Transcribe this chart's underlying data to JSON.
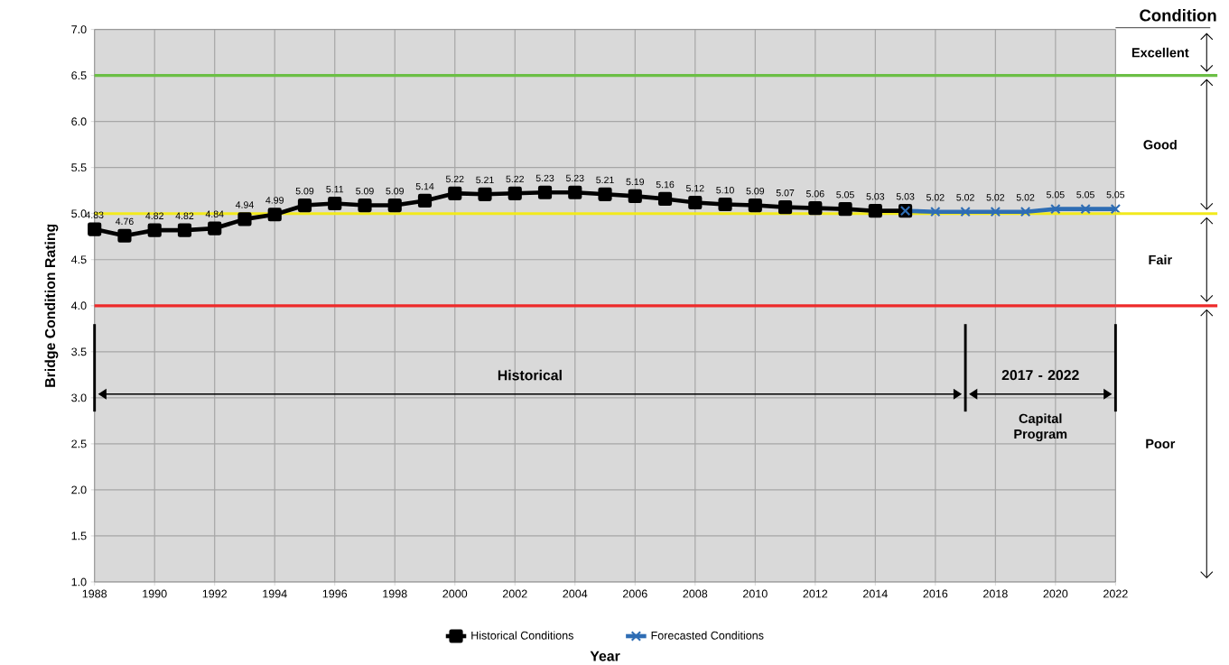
{
  "chart_data": {
    "type": "line",
    "xlabel": "Year",
    "ylabel": "Bridge Condition Rating",
    "xlim": [
      1988,
      2022
    ],
    "xticks": [
      1988,
      1990,
      1992,
      1994,
      1996,
      1998,
      2000,
      2002,
      2004,
      2006,
      2008,
      2010,
      2012,
      2014,
      2016,
      2018,
      2020,
      2022
    ],
    "ylim": [
      1.0,
      7.0
    ],
    "yticks": [
      {
        "value": 1.0,
        "label": "1.0"
      },
      {
        "value": 1.5,
        "label": "1.5"
      },
      {
        "value": 2.0,
        "label": "2.0"
      },
      {
        "value": 2.5,
        "label": "2.5"
      },
      {
        "value": 3.0,
        "label": "3.0"
      },
      {
        "value": 3.5,
        "label": "3.5"
      },
      {
        "value": 4.0,
        "label": "4.0"
      },
      {
        "value": 4.5,
        "label": "4.5"
      },
      {
        "value": 5.0,
        "label": "5.0"
      },
      {
        "value": 5.5,
        "label": "5.5"
      },
      {
        "value": 6.0,
        "label": "6.0"
      },
      {
        "value": 6.5,
        "label": "6.5"
      },
      {
        "value": 7.0,
        "label": "7.0"
      }
    ],
    "grid": true,
    "legend": "bottom",
    "series": [
      {
        "name": "Historical Conditions",
        "color": "#000000",
        "marker": "square",
        "x": [
          1988,
          1989,
          1990,
          1991,
          1992,
          1993,
          1994,
          1995,
          1996,
          1997,
          1998,
          1999,
          2000,
          2001,
          2002,
          2003,
          2004,
          2005,
          2006,
          2007,
          2008,
          2009,
          2010,
          2011,
          2012,
          2013,
          2014,
          2015
        ],
        "values": [
          4.83,
          4.76,
          4.82,
          4.82,
          4.84,
          4.94,
          4.99,
          5.09,
          5.11,
          5.09,
          5.09,
          5.14,
          5.22,
          5.21,
          5.22,
          5.23,
          5.23,
          5.21,
          5.19,
          5.16,
          5.12,
          5.1,
          5.09,
          5.07,
          5.06,
          5.05,
          5.03,
          5.03
        ],
        "value_labels": [
          "4.83",
          "4.76",
          "4.82",
          "4.82",
          "4.84",
          "4.94",
          "4.99",
          "5.09",
          "5.11",
          "5.09",
          "5.09",
          "5.14",
          "5.22",
          "5.21",
          "5.22",
          "5.23",
          "5.23",
          "5.21",
          "5.19",
          "5.16",
          "5.12",
          "5.10",
          "5.09",
          "5.07",
          "5.06",
          "5.05",
          "5.03",
          null
        ]
      },
      {
        "name": "Forecasted Conditions",
        "color": "#2e6db4",
        "marker": "cross",
        "x": [
          2015,
          2016,
          2017,
          2018,
          2019,
          2020,
          2021,
          2022
        ],
        "values": [
          5.03,
          5.02,
          5.02,
          5.02,
          5.02,
          5.05,
          5.05,
          5.05
        ],
        "value_labels": [
          "5.03",
          "5.02",
          "5.02",
          "5.02",
          "5.02",
          "5.05",
          "5.05",
          "5.05"
        ]
      }
    ],
    "ref_lines": [
      {
        "axis": "x",
        "value": 2017
      },
      {
        "axis": "y",
        "value": 6.5,
        "color": "#6bbf45"
      },
      {
        "axis": "y",
        "value": 5.0,
        "color": "#f2ea1c"
      },
      {
        "axis": "y",
        "value": 4.0,
        "color": "#ee2a2a"
      }
    ],
    "annotations": [
      "Condition",
      "Excellent",
      "Good",
      "Fair",
      "Poor",
      "Historical",
      "2017 - 2022",
      "Capital Program"
    ]
  }
}
